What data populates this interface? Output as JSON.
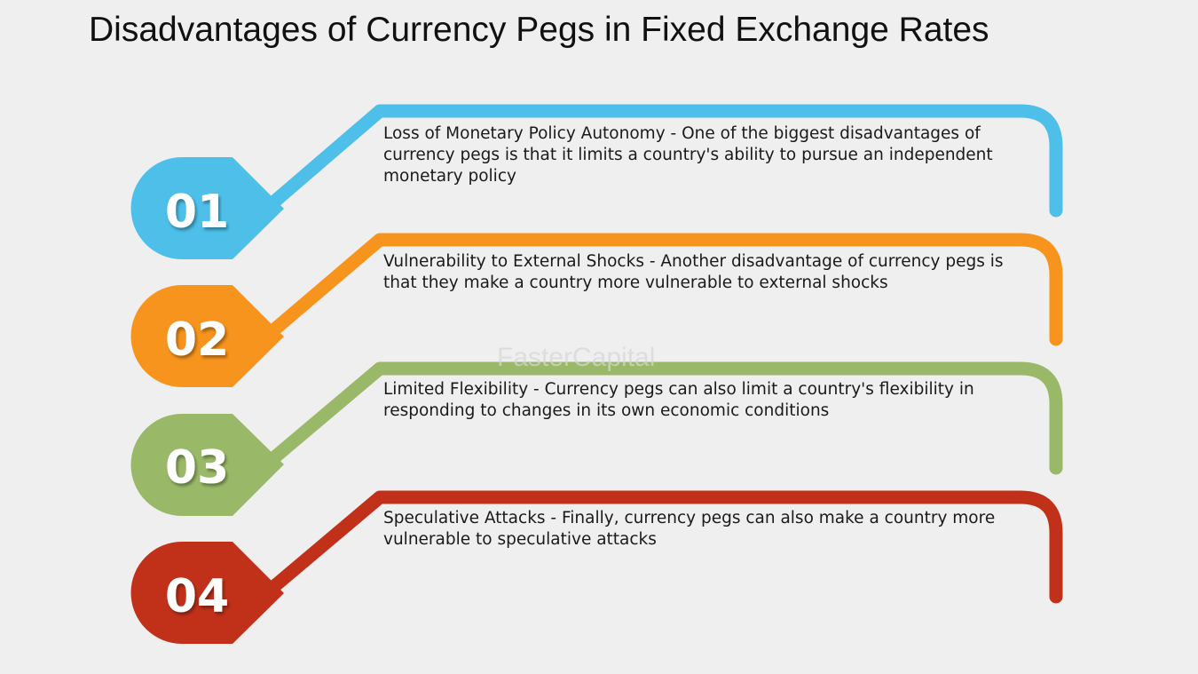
{
  "title": "Disadvantages of Currency Pegs in Fixed Exchange Rates",
  "watermark": "FasterCapital",
  "colors": {
    "item1": "#4dbfe9",
    "item2": "#f7941d",
    "item3": "#9ab968",
    "item4": "#c1311a",
    "background": "#f0eff0"
  },
  "items": [
    {
      "number": "01",
      "text": "Loss of Monetary Policy Autonomy - One of the biggest disadvantages of currency pegs is that it limits a country's ability to pursue an independent monetary policy"
    },
    {
      "number": "02",
      "text": "Vulnerability to External Shocks - Another disadvantage of currency pegs is that they make a country more vulnerable to external shocks"
    },
    {
      "number": "03",
      "text": "Limited Flexibility - Currency pegs can also limit a country's flexibility in responding to changes in its own economic conditions"
    },
    {
      "number": "04",
      "text": "Speculative Attacks - Finally, currency pegs can also make a country more vulnerable to speculative attacks"
    }
  ]
}
